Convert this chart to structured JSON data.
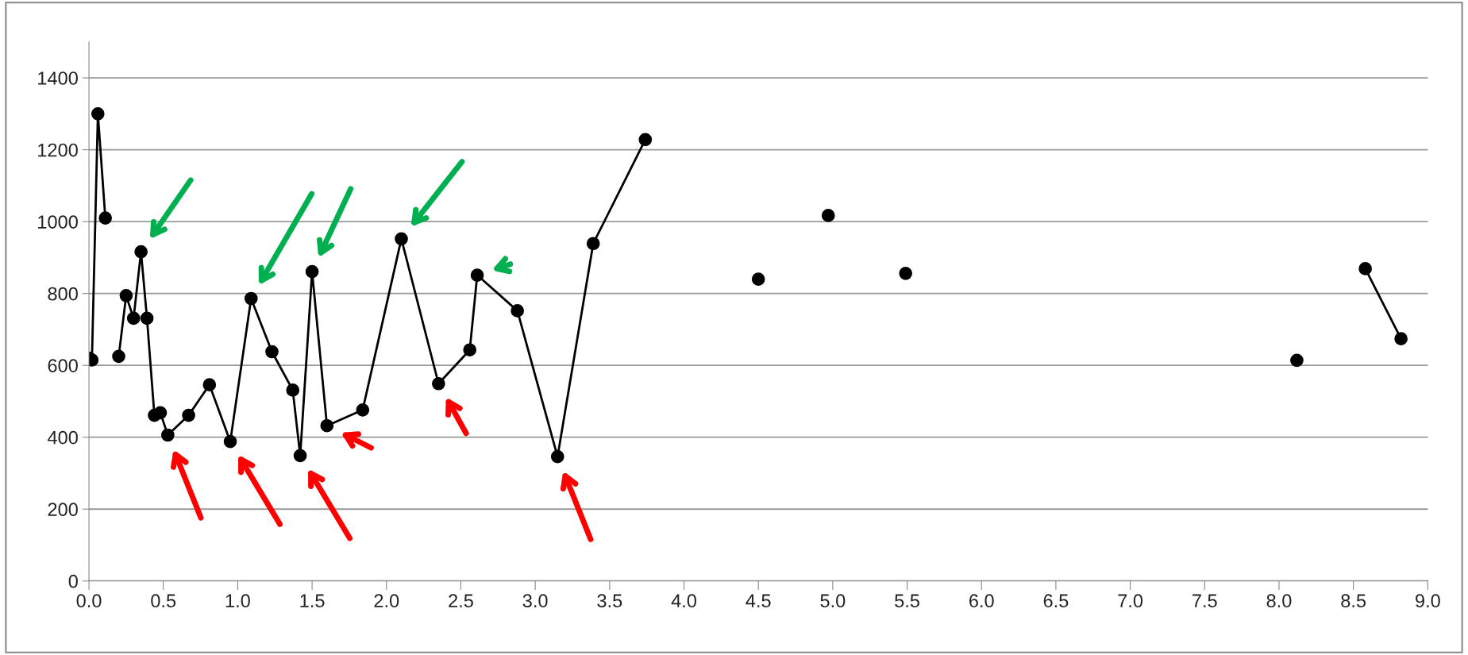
{
  "chart_data": {
    "type": "line",
    "marker": "circle",
    "line_style": "solid",
    "grid": "y",
    "xlim": [
      0,
      9
    ],
    "xticks": [
      {
        "value": 0,
        "label": "0.0"
      },
      {
        "value": 0.5,
        "label": "0.5"
      },
      {
        "value": 1,
        "label": "1.0"
      },
      {
        "value": 1.5,
        "label": "1.5"
      },
      {
        "value": 2,
        "label": "2.0"
      },
      {
        "value": 2.5,
        "label": "2.5"
      },
      {
        "value": 3,
        "label": "3.0"
      },
      {
        "value": 3.5,
        "label": "3.5"
      },
      {
        "value": 4,
        "label": "4.0"
      },
      {
        "value": 4.5,
        "label": "4.5"
      },
      {
        "value": 5,
        "label": "5.0"
      },
      {
        "value": 5.5,
        "label": "5.5"
      },
      {
        "value": 6,
        "label": "6.0"
      },
      {
        "value": 6.5,
        "label": "6.5"
      },
      {
        "value": 7,
        "label": "7.0"
      },
      {
        "value": 7.5,
        "label": "7.5"
      },
      {
        "value": 8,
        "label": "8.0"
      },
      {
        "value": 8.5,
        "label": "8.5"
      },
      {
        "value": 9,
        "label": "9.0"
      }
    ],
    "ylim": [
      0,
      1500
    ],
    "yticks": [
      0,
      200,
      400,
      600,
      800,
      1000,
      1200,
      1400
    ],
    "series": [
      {
        "color": "#000000",
        "x": [
          0.0,
          0.02,
          0.06,
          0.11,
          0.17,
          0.2,
          0.25,
          0.3,
          0.35,
          0.39,
          0.44,
          0.48,
          0.53,
          0.67,
          0.81,
          0.95,
          1.09,
          1.23,
          1.37,
          1.42,
          1.5,
          1.6,
          1.84,
          2.1,
          2.35,
          2.56,
          2.61,
          2.88,
          3.15,
          3.39,
          3.74,
          4.2,
          4.5,
          4.75,
          4.97,
          5.25,
          5.49,
          6.8,
          8.12,
          8.4,
          8.58,
          8.82
        ],
        "values": [
          620,
          615,
          1300,
          1010,
          null,
          625,
          794,
          731,
          916,
          731,
          461,
          468,
          406,
          461,
          546,
          388,
          786,
          638,
          531,
          349,
          861,
          432,
          476,
          952,
          549,
          643,
          851,
          752,
          346,
          939,
          1228,
          null,
          840,
          null,
          1017,
          null,
          856,
          null,
          614,
          null,
          869,
          674
        ]
      }
    ]
  }
}
